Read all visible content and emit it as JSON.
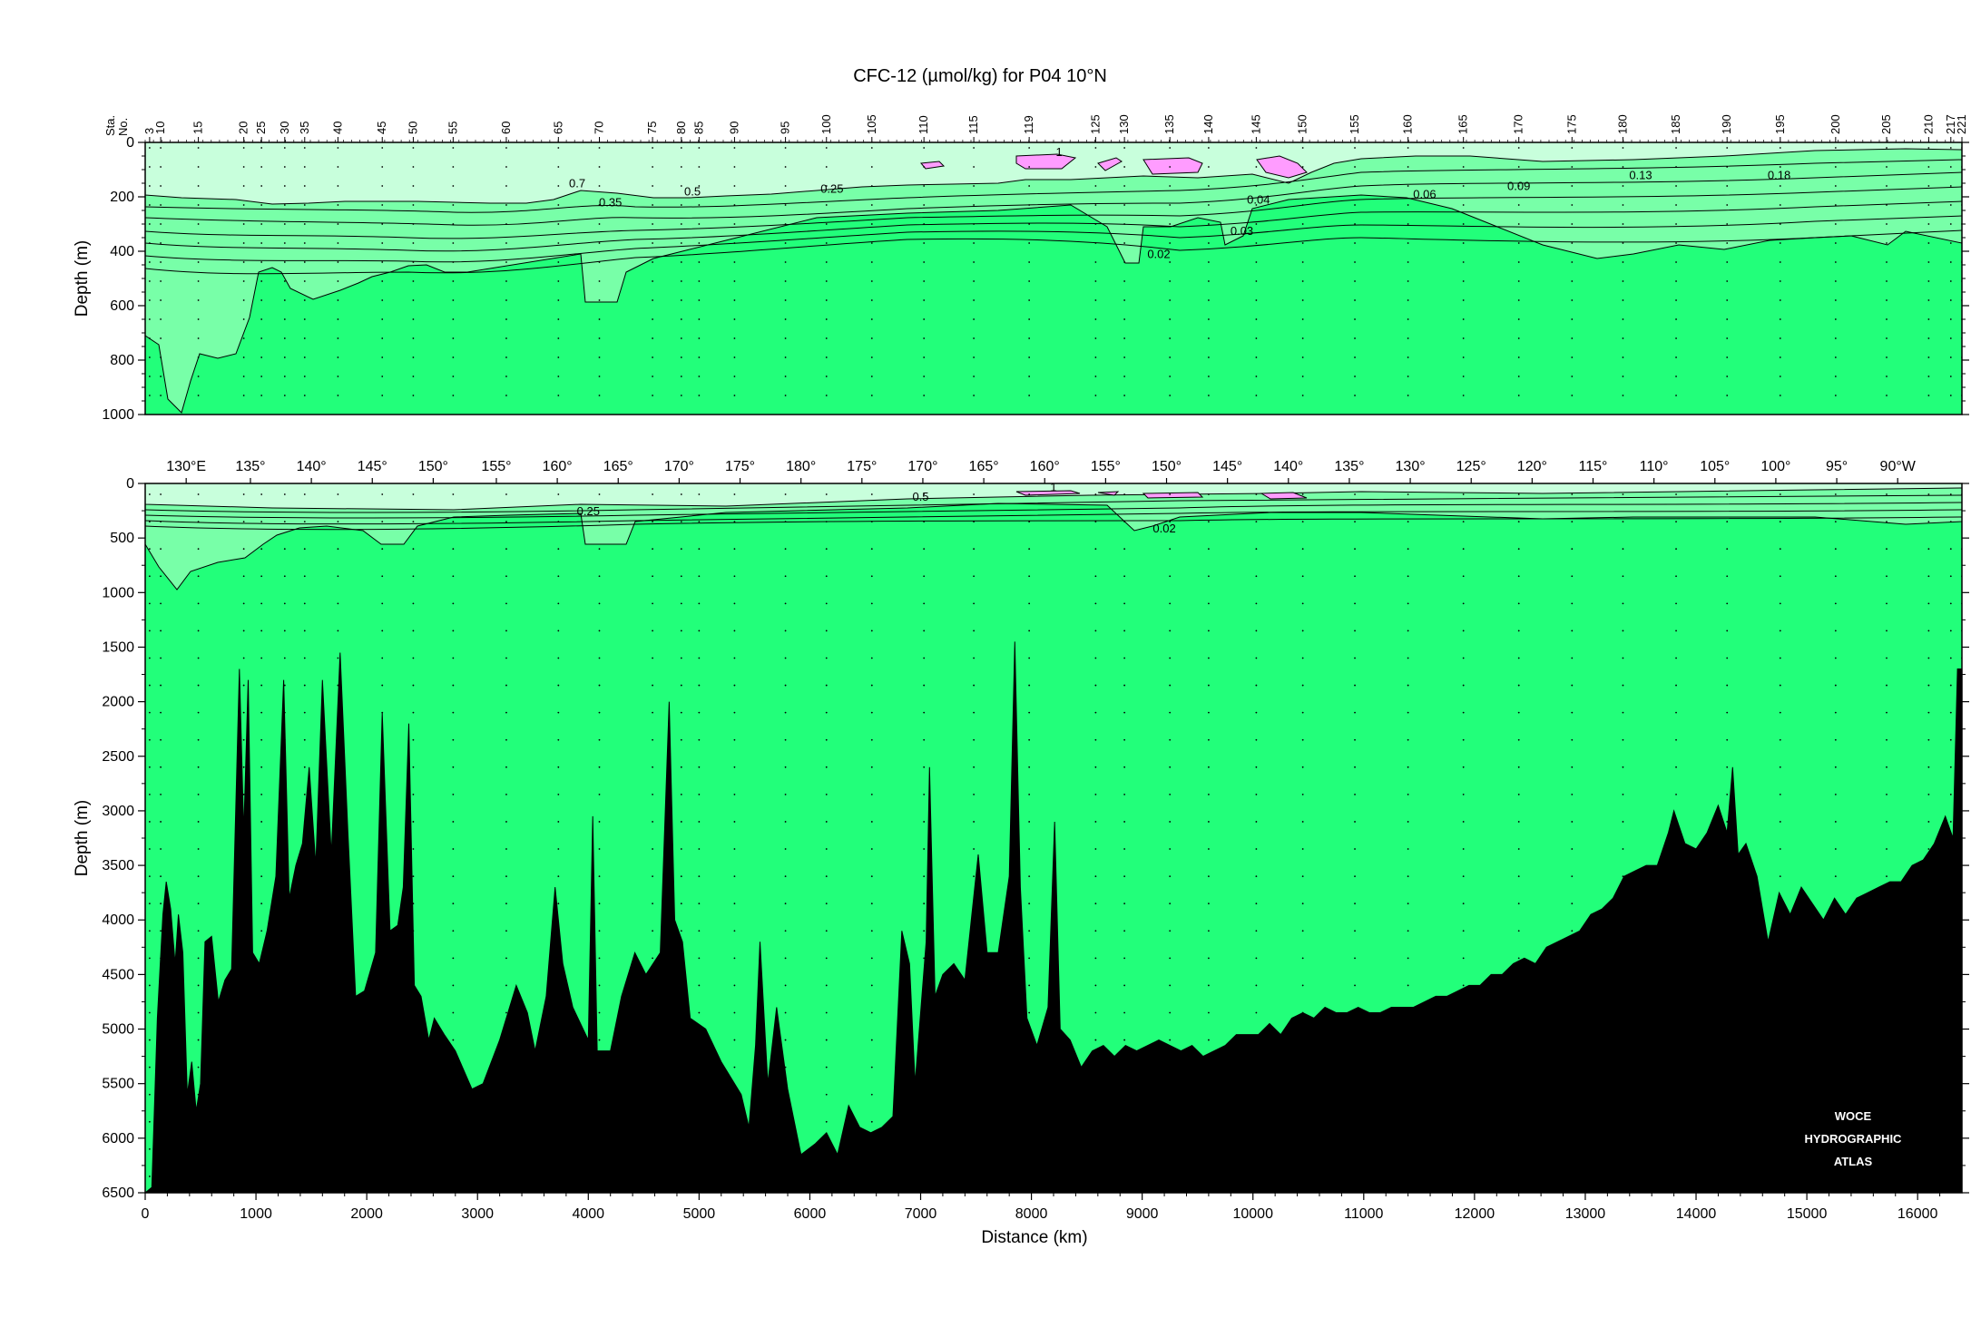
{
  "chart_data": [
    {
      "type": "contour",
      "panel": "upper",
      "title": "CFC-12 (µmol/kg) for P04 10°N",
      "ylabel": "Depth (m)",
      "y_axis_inverted": true,
      "ylim": [
        0,
        1000
      ],
      "xlim": [
        0,
        16400
      ],
      "y_ticks": [
        0,
        200,
        400,
        600,
        800,
        1000
      ],
      "station_axis": {
        "label_top": "Sta.",
        "label_bottom": "No.",
        "stations": [
          {
            "no": "3",
            "km": 40
          },
          {
            "no": "10",
            "km": 140
          },
          {
            "no": "15",
            "km": 480
          },
          {
            "no": "20",
            "km": 890
          },
          {
            "no": "25",
            "km": 1050
          },
          {
            "no": "30",
            "km": 1260
          },
          {
            "no": "35",
            "km": 1440
          },
          {
            "no": "40",
            "km": 1740
          },
          {
            "no": "45",
            "km": 2140
          },
          {
            "no": "50",
            "km": 2420
          },
          {
            "no": "55",
            "km": 2780
          },
          {
            "no": "60",
            "km": 3260
          },
          {
            "no": "65",
            "km": 3730
          },
          {
            "no": "70",
            "km": 4100
          },
          {
            "no": "75",
            "km": 4580
          },
          {
            "no": "80",
            "km": 4840
          },
          {
            "no": "85",
            "km": 5000
          },
          {
            "no": "90",
            "km": 5320
          },
          {
            "no": "95",
            "km": 5780
          },
          {
            "no": "100",
            "km": 6150
          },
          {
            "no": "105",
            "km": 6560
          },
          {
            "no": "110",
            "km": 7030
          },
          {
            "no": "115",
            "km": 7480
          },
          {
            "no": "119",
            "km": 7980
          },
          {
            "no": "125",
            "km": 8580
          },
          {
            "no": "130",
            "km": 8840
          },
          {
            "no": "135",
            "km": 9250
          },
          {
            "no": "140",
            "km": 9600
          },
          {
            "no": "145",
            "km": 10030
          },
          {
            "no": "150",
            "km": 10450
          },
          {
            "no": "155",
            "km": 10920
          },
          {
            "no": "160",
            "km": 11400
          },
          {
            "no": "165",
            "km": 11900
          },
          {
            "no": "170",
            "km": 12400
          },
          {
            "no": "175",
            "km": 12880
          },
          {
            "no": "180",
            "km": 13340
          },
          {
            "no": "185",
            "km": 13820
          },
          {
            "no": "190",
            "km": 14280
          },
          {
            "no": "195",
            "km": 14760
          },
          {
            "no": "200",
            "km": 15260
          },
          {
            "no": "205",
            "km": 15720
          },
          {
            "no": "210",
            "km": 16100
          },
          {
            "no": "217",
            "km": 16300
          },
          {
            "no": "221",
            "km": 16400
          }
        ]
      },
      "contour_labels": [
        {
          "text": "0.7",
          "km": 3900,
          "depth": 165
        },
        {
          "text": "0.5",
          "km": 4940,
          "depth": 195
        },
        {
          "text": "0.35",
          "km": 4200,
          "depth": 235
        },
        {
          "text": "0.25",
          "km": 6200,
          "depth": 185
        },
        {
          "text": "1",
          "km": 8250,
          "depth": 50
        },
        {
          "text": "0.04",
          "km": 10050,
          "depth": 225
        },
        {
          "text": "0.03",
          "km": 9900,
          "depth": 340
        },
        {
          "text": "0.02",
          "km": 9150,
          "depth": 425
        },
        {
          "text": "0.06",
          "km": 11550,
          "depth": 205
        },
        {
          "text": "0.09",
          "km": 12400,
          "depth": 175
        },
        {
          "text": "0.13",
          "km": 13500,
          "depth": 135
        },
        {
          "text": "0.18",
          "km": 14750,
          "depth": 135
        }
      ],
      "colors": {
        "high": "#ff9cff",
        "mid": "#c8ffdc",
        "low": "#78ffa8",
        "background": "#22ff7a",
        "bottom": "#000000"
      }
    },
    {
      "type": "contour",
      "panel": "lower",
      "xlabel": "Distance (km)",
      "ylabel": "Depth (m)",
      "y_axis_inverted": true,
      "ylim": [
        0,
        6500
      ],
      "xlim": [
        0,
        16400
      ],
      "y_ticks": [
        0,
        500,
        1000,
        1500,
        2000,
        2500,
        3000,
        3500,
        4000,
        4500,
        5000,
        5500,
        6000,
        6500
      ],
      "x_ticks": [
        0,
        1000,
        2000,
        3000,
        4000,
        5000,
        6000,
        7000,
        8000,
        9000,
        10000,
        11000,
        12000,
        13000,
        14000,
        15000,
        16000
      ],
      "longitude_axis": [
        {
          "label": "130°E",
          "km": 370
        },
        {
          "label": "135°",
          "km": 950
        },
        {
          "label": "140°",
          "km": 1500
        },
        {
          "label": "145°",
          "km": 2050
        },
        {
          "label": "150°",
          "km": 2600
        },
        {
          "label": "155°",
          "km": 3170
        },
        {
          "label": "160°",
          "km": 3720
        },
        {
          "label": "165°",
          "km": 4270
        },
        {
          "label": "170°",
          "km": 4820
        },
        {
          "label": "175°",
          "km": 5370
        },
        {
          "label": "180°",
          "km": 5920
        },
        {
          "label": "175°",
          "km": 6470
        },
        {
          "label": "170°",
          "km": 7020
        },
        {
          "label": "165°",
          "km": 7570
        },
        {
          "label": "160°",
          "km": 8120
        },
        {
          "label": "155°",
          "km": 8670
        },
        {
          "label": "150°",
          "km": 9220
        },
        {
          "label": "145°",
          "km": 9770
        },
        {
          "label": "140°",
          "km": 10320
        },
        {
          "label": "135°",
          "km": 10870
        },
        {
          "label": "130°",
          "km": 11420
        },
        {
          "label": "125°",
          "km": 11970
        },
        {
          "label": "120°",
          "km": 12520
        },
        {
          "label": "115°",
          "km": 13070
        },
        {
          "label": "110°",
          "km": 13620
        },
        {
          "label": "105°",
          "km": 14170
        },
        {
          "label": "100°",
          "km": 14720
        },
        {
          "label": "95°",
          "km": 15270
        },
        {
          "label": "90°W",
          "km": 15820
        }
      ],
      "contour_labels": [
        {
          "text": "0.25",
          "km": 4000,
          "depth": 290
        },
        {
          "text": "0.5",
          "km": 7000,
          "depth": 160
        },
        {
          "text": "1",
          "km": 8200,
          "depth": 70
        },
        {
          "text": "0.02",
          "km": 9200,
          "depth": 450
        }
      ],
      "bathymetry_depth_m": [
        [
          0,
          6500
        ],
        [
          60,
          6450
        ],
        [
          110,
          4900
        ],
        [
          160,
          3950
        ],
        [
          190,
          3650
        ],
        [
          230,
          3900
        ],
        [
          270,
          4400
        ],
        [
          300,
          3950
        ],
        [
          340,
          4300
        ],
        [
          380,
          5600
        ],
        [
          420,
          5300
        ],
        [
          460,
          5750
        ],
        [
          500,
          5500
        ],
        [
          540,
          4200
        ],
        [
          600,
          4150
        ],
        [
          660,
          4750
        ],
        [
          720,
          4550
        ],
        [
          780,
          4450
        ],
        [
          850,
          1700
        ],
        [
          890,
          3200
        ],
        [
          930,
          1800
        ],
        [
          970,
          4300
        ],
        [
          1030,
          4400
        ],
        [
          1100,
          4100
        ],
        [
          1180,
          3600
        ],
        [
          1250,
          1800
        ],
        [
          1300,
          3800
        ],
        [
          1360,
          3500
        ],
        [
          1420,
          3300
        ],
        [
          1480,
          2600
        ],
        [
          1540,
          3500
        ],
        [
          1600,
          1800
        ],
        [
          1680,
          3400
        ],
        [
          1760,
          1550
        ],
        [
          1830,
          3200
        ],
        [
          1900,
          4700
        ],
        [
          1980,
          4650
        ],
        [
          2080,
          4300
        ],
        [
          2140,
          2100
        ],
        [
          2210,
          4100
        ],
        [
          2280,
          4050
        ],
        [
          2330,
          3700
        ],
        [
          2380,
          2200
        ],
        [
          2430,
          4600
        ],
        [
          2490,
          4700
        ],
        [
          2560,
          5100
        ],
        [
          2610,
          4900
        ],
        [
          2700,
          5050
        ],
        [
          2800,
          5200
        ],
        [
          2950,
          5550
        ],
        [
          3050,
          5500
        ],
        [
          3200,
          5100
        ],
        [
          3350,
          4600
        ],
        [
          3450,
          4850
        ],
        [
          3520,
          5200
        ],
        [
          3620,
          4700
        ],
        [
          3700,
          3700
        ],
        [
          3770,
          4400
        ],
        [
          3860,
          4800
        ],
        [
          4000,
          5100
        ],
        [
          4040,
          3050
        ],
        [
          4080,
          5200
        ],
        [
          4200,
          5200
        ],
        [
          4300,
          4700
        ],
        [
          4420,
          4300
        ],
        [
          4520,
          4500
        ],
        [
          4650,
          4300
        ],
        [
          4730,
          2000
        ],
        [
          4780,
          4000
        ],
        [
          4850,
          4200
        ],
        [
          4920,
          4900
        ],
        [
          5060,
          5000
        ],
        [
          5200,
          5300
        ],
        [
          5380,
          5600
        ],
        [
          5450,
          5900
        ],
        [
          5510,
          5150
        ],
        [
          5550,
          4200
        ],
        [
          5620,
          5500
        ],
        [
          5700,
          4800
        ],
        [
          5800,
          5550
        ],
        [
          5920,
          6150
        ],
        [
          6050,
          6050
        ],
        [
          6150,
          5950
        ],
        [
          6250,
          6150
        ],
        [
          6350,
          5700
        ],
        [
          6450,
          5900
        ],
        [
          6550,
          5950
        ],
        [
          6650,
          5900
        ],
        [
          6750,
          5800
        ],
        [
          6830,
          4100
        ],
        [
          6900,
          4400
        ],
        [
          6950,
          5500
        ],
        [
          7050,
          4200
        ],
        [
          7080,
          2600
        ],
        [
          7130,
          4700
        ],
        [
          7200,
          4500
        ],
        [
          7300,
          4400
        ],
        [
          7400,
          4550
        ],
        [
          7520,
          3400
        ],
        [
          7600,
          4300
        ],
        [
          7700,
          4300
        ],
        [
          7800,
          3600
        ],
        [
          7850,
          1450
        ],
        [
          7900,
          3700
        ],
        [
          7960,
          4900
        ],
        [
          8050,
          5150
        ],
        [
          8150,
          4800
        ],
        [
          8210,
          3100
        ],
        [
          8260,
          5000
        ],
        [
          8350,
          5100
        ],
        [
          8450,
          5350
        ],
        [
          8550,
          5200
        ],
        [
          8650,
          5150
        ],
        [
          8750,
          5250
        ],
        [
          8850,
          5150
        ],
        [
          8950,
          5200
        ],
        [
          9050,
          5150
        ],
        [
          9150,
          5100
        ],
        [
          9250,
          5150
        ],
        [
          9350,
          5200
        ],
        [
          9450,
          5150
        ],
        [
          9550,
          5250
        ],
        [
          9650,
          5200
        ],
        [
          9750,
          5150
        ],
        [
          9850,
          5050
        ],
        [
          9950,
          5050
        ],
        [
          10050,
          5050
        ],
        [
          10150,
          4950
        ],
        [
          10250,
          5050
        ],
        [
          10350,
          4900
        ],
        [
          10450,
          4850
        ],
        [
          10550,
          4900
        ],
        [
          10650,
          4800
        ],
        [
          10750,
          4850
        ],
        [
          10850,
          4850
        ],
        [
          10950,
          4800
        ],
        [
          11050,
          4850
        ],
        [
          11150,
          4850
        ],
        [
          11250,
          4800
        ],
        [
          11350,
          4800
        ],
        [
          11450,
          4800
        ],
        [
          11550,
          4750
        ],
        [
          11650,
          4700
        ],
        [
          11750,
          4700
        ],
        [
          11850,
          4650
        ],
        [
          11950,
          4600
        ],
        [
          12050,
          4600
        ],
        [
          12150,
          4500
        ],
        [
          12250,
          4500
        ],
        [
          12350,
          4400
        ],
        [
          12450,
          4350
        ],
        [
          12550,
          4400
        ],
        [
          12650,
          4250
        ],
        [
          12750,
          4200
        ],
        [
          12850,
          4150
        ],
        [
          12950,
          4100
        ],
        [
          13050,
          3950
        ],
        [
          13150,
          3900
        ],
        [
          13250,
          3800
        ],
        [
          13350,
          3600
        ],
        [
          13450,
          3550
        ],
        [
          13550,
          3500
        ],
        [
          13650,
          3500
        ],
        [
          13750,
          3200
        ],
        [
          13800,
          3000
        ],
        [
          13900,
          3300
        ],
        [
          14000,
          3350
        ],
        [
          14100,
          3200
        ],
        [
          14200,
          2950
        ],
        [
          14280,
          3200
        ],
        [
          14330,
          2600
        ],
        [
          14380,
          3400
        ],
        [
          14450,
          3300
        ],
        [
          14550,
          3600
        ],
        [
          14650,
          4200
        ],
        [
          14750,
          3750
        ],
        [
          14850,
          3950
        ],
        [
          14950,
          3700
        ],
        [
          15050,
          3850
        ],
        [
          15150,
          4000
        ],
        [
          15250,
          3800
        ],
        [
          15350,
          3950
        ],
        [
          15450,
          3800
        ],
        [
          15550,
          3750
        ],
        [
          15650,
          3700
        ],
        [
          15750,
          3650
        ],
        [
          15850,
          3650
        ],
        [
          15950,
          3500
        ],
        [
          16050,
          3450
        ],
        [
          16150,
          3300
        ],
        [
          16250,
          3050
        ],
        [
          16320,
          3250
        ],
        [
          16360,
          1700
        ],
        [
          16400,
          1700
        ]
      ]
    }
  ],
  "watermark": [
    "WOCE",
    "HYDROGRAPHIC",
    "ATLAS"
  ]
}
